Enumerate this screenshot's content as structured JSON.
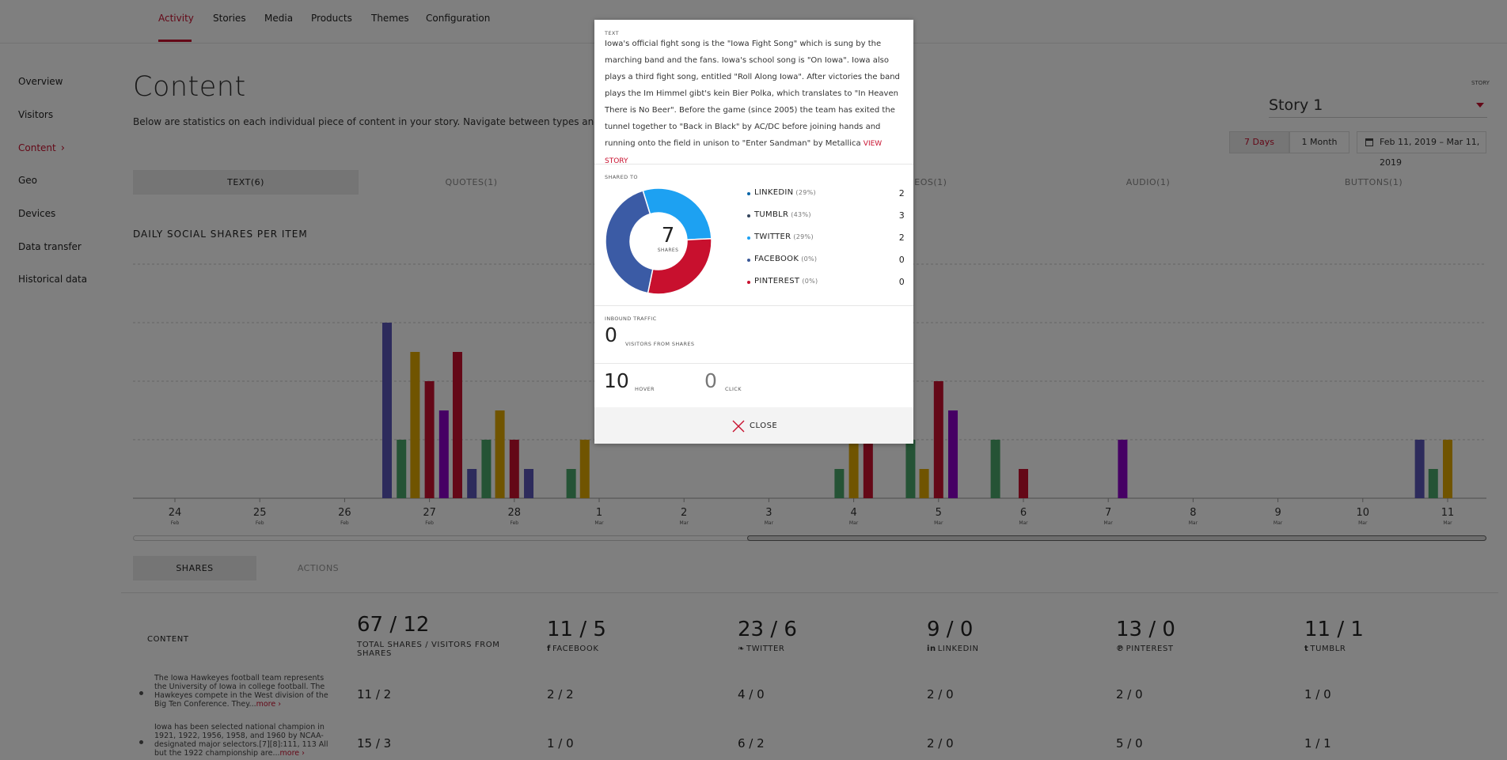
{
  "topnav": {
    "tabs": [
      {
        "label": "Activity",
        "active": true
      },
      {
        "label": "Stories"
      },
      {
        "label": "Media"
      },
      {
        "label": "Products"
      },
      {
        "label": "Themes"
      },
      {
        "label": "Configuration"
      }
    ]
  },
  "sidebar": {
    "items": [
      {
        "label": "Overview"
      },
      {
        "label": "Visitors"
      },
      {
        "label": "Content",
        "active": true
      },
      {
        "label": "Geo"
      },
      {
        "label": "Devices"
      },
      {
        "label": "Data transfer"
      },
      {
        "label": "Historical data"
      }
    ]
  },
  "page": {
    "title": "Content",
    "description": "Below are statistics on each individual piece of content in your story. Navigate between types and hover",
    "story_caption": "STORY",
    "story_value": "Story 1",
    "range_buttons": [
      "7 Days",
      "1 Month"
    ],
    "date_range": "Feb 11, 2019 – Mar 11, 2019"
  },
  "type_tabs": [
    "TEXT(6)",
    "QUOTES(1)",
    "",
    "VIDEOS(1)",
    "AUDIO(1)",
    "BUTTONS(1)"
  ],
  "chart_data": {
    "type": "bar",
    "title": "DAILY SOCIAL SHARES PER ITEM",
    "x_ticks": [
      {
        "day": "24",
        "month": "Feb"
      },
      {
        "day": "25",
        "month": "Feb"
      },
      {
        "day": "26",
        "month": "Feb"
      },
      {
        "day": "27",
        "month": "Feb"
      },
      {
        "day": "28",
        "month": "Feb"
      },
      {
        "day": "1",
        "month": "Mar"
      },
      {
        "day": "2",
        "month": "Mar"
      },
      {
        "day": "3",
        "month": "Mar"
      },
      {
        "day": "4",
        "month": "Mar"
      },
      {
        "day": "5",
        "month": "Mar"
      },
      {
        "day": "6",
        "month": "Mar"
      },
      {
        "day": "7",
        "month": "Mar"
      },
      {
        "day": "8",
        "month": "Mar"
      },
      {
        "day": "9",
        "month": "Mar"
      },
      {
        "day": "10",
        "month": "Mar"
      },
      {
        "day": "11",
        "month": "Mar"
      }
    ],
    "ylim": [
      0,
      4
    ],
    "grid": true,
    "colors": {
      "purple_blue": "#5b57b8",
      "green": "#4aa66a",
      "gold": "#e0a900",
      "red": "#c8102e",
      "violet": "#8d00c8"
    },
    "bars": [
      {
        "day": 26.5,
        "color": "purple_blue",
        "value": 3
      },
      {
        "day": 26.67,
        "color": "green",
        "value": 1
      },
      {
        "day": 26.83,
        "color": "gold",
        "value": 2.5
      },
      {
        "day": 27.0,
        "color": "red",
        "value": 2
      },
      {
        "day": 27.17,
        "color": "violet",
        "value": 1.5
      },
      {
        "day": 27.33,
        "color": "red",
        "value": 2.5
      },
      {
        "day": 27.5,
        "color": "purple_blue",
        "value": 0.5
      },
      {
        "day": 27.67,
        "color": "green",
        "value": 1
      },
      {
        "day": 27.83,
        "color": "gold",
        "value": 1.5
      },
      {
        "day": 28.0,
        "color": "red",
        "value": 1
      },
      {
        "day": 28.17,
        "color": "purple_blue",
        "value": 0.5
      },
      {
        "day": 28.67,
        "color": "green",
        "value": 0.5
      },
      {
        "day": 28.83,
        "color": "gold",
        "value": 1
      },
      {
        "day": 31.83,
        "color": "green",
        "value": 0.5
      },
      {
        "day": 32.0,
        "color": "gold",
        "value": 1
      },
      {
        "day": 32.17,
        "color": "red",
        "value": 1
      },
      {
        "day": 32.67,
        "color": "green",
        "value": 1
      },
      {
        "day": 32.83,
        "color": "gold",
        "value": 0.5
      },
      {
        "day": 33.0,
        "color": "red",
        "value": 2
      },
      {
        "day": 33.17,
        "color": "violet",
        "value": 1.5
      },
      {
        "day": 33.67,
        "color": "green",
        "value": 1
      },
      {
        "day": 34.0,
        "color": "red",
        "value": 0.5
      },
      {
        "day": 35.17,
        "color": "violet",
        "value": 1
      },
      {
        "day": 38.67,
        "color": "purple_blue",
        "value": 1
      },
      {
        "day": 38.83,
        "color": "green",
        "value": 0.5
      },
      {
        "day": 39.0,
        "color": "gold",
        "value": 1
      }
    ]
  },
  "bottom_tabs": [
    "SHARES",
    "ACTIONS"
  ],
  "table": {
    "content_header": "CONTENT",
    "columns": [
      {
        "big": "67 / 12",
        "label": "TOTAL SHARES / VISITORS FROM SHARES",
        "icon": ""
      },
      {
        "big": "11 / 5",
        "label": "FACEBOOK",
        "icon": "f"
      },
      {
        "big": "23 / 6",
        "label": "TWITTER",
        "icon": "❧"
      },
      {
        "big": "9 / 0",
        "label": "LINKEDIN",
        "icon": "in"
      },
      {
        "big": "13 / 0",
        "label": "PINTEREST",
        "icon": "℗"
      },
      {
        "big": "11 / 1",
        "label": "TUMBLR",
        "icon": "t"
      }
    ],
    "rows": [
      {
        "text": "The Iowa Hawkeyes football team represents the University of Iowa in college football. The Hawkeyes compete in the West division of the Big Ten Conference. They...",
        "more": "more ›",
        "cells": [
          "11 / 2",
          "2 / 2",
          "4 / 0",
          "2 / 0",
          "2 / 0",
          "1 / 0"
        ]
      },
      {
        "text": "Iowa has been selected national champion in 1921, 1922, 1956, 1958, and 1960 by NCAA-designated major selectors.[7][8]:111, 113 All but the 1922 championship are...",
        "more": "more ›",
        "cells": [
          "15 / 3",
          "1 / 0",
          "6 / 2",
          "2 / 0",
          "5 / 0",
          "1 / 1"
        ]
      }
    ]
  },
  "modal": {
    "text_caption": "TEXT",
    "text": "Iowa's official fight song is the \"Iowa Fight Song\" which is sung by the marching band and the fans. Iowa's school song is \"On Iowa\". Iowa also plays a third fight song, entitled \"Roll Along Iowa\". After victories the band plays the Im Himmel gibt's kein Bier Polka, which translates to \"In Heaven There is No Beer\". Before the game (since 2005) the team has exited the tunnel together to \"Back in Black\" by AC/DC before joining hands and running onto the field in unison to \"Enter Sandman\" by Metallica",
    "view_story": "VIEW STORY",
    "shared_to_caption": "SHARED TO",
    "total_shares": "7",
    "shares_label": "SHARES",
    "networks": [
      {
        "name": "LINKEDIN",
        "pct": "(29%)",
        "count": "2",
        "color": "#0a66a8"
      },
      {
        "name": "TUMBLR",
        "pct": "(43%)",
        "count": "3",
        "color": "#35465c"
      },
      {
        "name": "TWITTER",
        "pct": "(29%)",
        "count": "2",
        "color": "#1da1f2"
      },
      {
        "name": "FACEBOOK",
        "pct": "(0%)",
        "count": "0",
        "color": "#3b5998"
      },
      {
        "name": "PINTEREST",
        "pct": "(0%)",
        "count": "0",
        "color": "#c8102e"
      }
    ],
    "donut_colors": {
      "twitter": "#1da1f2",
      "pinterest_red": "#c8102e",
      "tumblr_blue": "#3b5ba5"
    },
    "donut_fractions": {
      "twitter": 0.29,
      "red": 0.29,
      "blue": 0.42
    },
    "inbound_caption": "INBOUND TRAFFIC",
    "visitors": "0",
    "visitors_label": "VISITORS FROM SHARES",
    "hover": "10",
    "hover_label": "HOVER",
    "click": "0",
    "click_label": "CLICK",
    "close_label": "CLOSE"
  }
}
